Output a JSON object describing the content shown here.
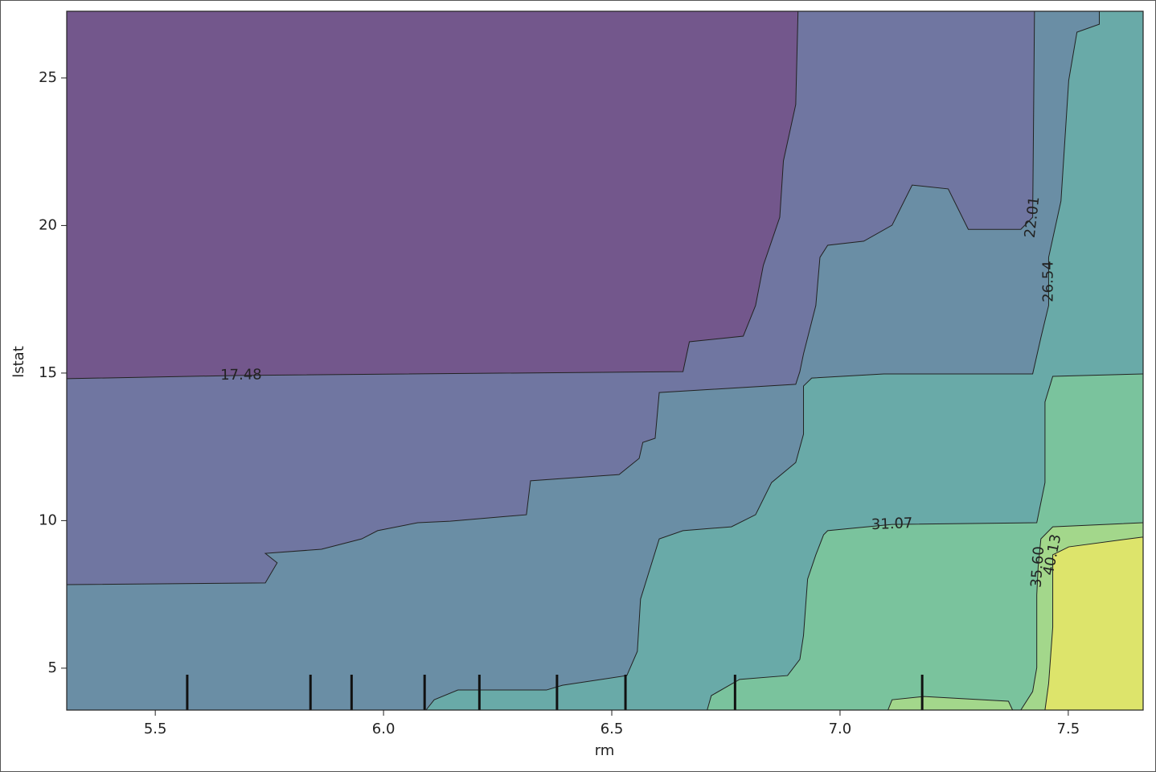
{
  "chart_data": {
    "type": "contour",
    "xlabel": "rm",
    "ylabel": "lstat",
    "xlim": [
      5.306,
      7.664
    ],
    "ylim": [
      3.58,
      27.26
    ],
    "xticks": [
      5.5,
      {
        "value": 6,
        "label": "6.0"
      },
      6.5,
      {
        "value": 7,
        "label": "7.0"
      },
      7.5
    ],
    "yticks": [
      5,
      10,
      15,
      20,
      25
    ],
    "levels": [
      17.48,
      22.01,
      26.54,
      31.07,
      {
        "value": 35.6,
        "label": "35.60"
      },
      40.13
    ],
    "colors": [
      "#73578c",
      "#7076a1",
      "#6a8ea5",
      "#69aaa8",
      "#7ac39d",
      "#a3d78b",
      "#dde46b"
    ],
    "lines": [
      {
        "level": 0,
        "x": [
          5.306,
          5.688,
          6.656,
          6.67,
          6.788,
          6.815,
          6.832,
          6.868,
          6.876,
          6.903,
          6.908
        ],
        "y": [
          14.81,
          14.92,
          15.05,
          16.06,
          16.25,
          17.29,
          18.65,
          20.28,
          22.19,
          24.1,
          27.26
        ]
      },
      {
        "level": 1,
        "x": [
          5.306,
          5.741,
          5.767,
          5.741,
          5.864,
          5.952,
          5.987,
          6.075,
          6.146,
          6.313,
          6.322,
          6.516,
          6.56,
          6.568,
          6.595,
          6.604,
          6.903,
          6.912,
          6.92,
          6.947,
          6.956,
          6.973,
          7.052,
          7.114,
          7.158,
          7.237,
          7.281,
          7.396,
          7.422,
          7.424,
          7.426
        ],
        "y": [
          7.83,
          7.89,
          8.57,
          8.89,
          9.03,
          9.38,
          9.66,
          9.93,
          9.98,
          10.2,
          11.35,
          11.56,
          12.11,
          12.65,
          12.79,
          14.34,
          14.62,
          15.05,
          15.65,
          17.29,
          18.92,
          19.33,
          19.47,
          20.01,
          21.37,
          21.24,
          19.87,
          19.87,
          20.28,
          23.69,
          27.26
        ]
      },
      {
        "level": 2,
        "x": [
          6.093,
          6.111,
          6.163,
          6.216,
          6.357,
          6.392,
          6.533,
          6.556,
          6.563,
          6.604,
          6.656,
          6.762,
          6.815,
          6.85,
          6.903,
          6.92,
          6.92,
          6.938,
          7.096,
          7.422,
          7.44,
          7.457,
          7.457,
          7.457,
          7.484,
          7.501,
          7.519,
          7.568,
          7.568
        ],
        "y": [
          3.58,
          3.93,
          4.26,
          4.26,
          4.26,
          4.42,
          4.75,
          5.57,
          7.34,
          9.38,
          9.66,
          9.79,
          10.2,
          11.29,
          11.97,
          12.93,
          14.56,
          14.83,
          14.97,
          14.97,
          16.2,
          17.29,
          18.1,
          18.92,
          20.83,
          24.92,
          26.55,
          26.82,
          27.26
        ]
      },
      {
        "level": 3,
        "x": [
          6.709,
          6.718,
          6.78,
          6.885,
          6.912,
          6.92,
          6.929,
          6.947,
          6.964,
          6.973,
          7.114,
          7.431,
          7.449,
          7.449,
          7.466,
          7.664
        ],
        "y": [
          3.58,
          4.07,
          4.62,
          4.75,
          5.3,
          6.11,
          8.02,
          8.84,
          9.52,
          9.66,
          9.87,
          9.93,
          11.29,
          14.02,
          14.89,
          14.97
        ]
      },
      {
        "level": 4,
        "x": [
          7.105,
          7.114,
          7.184,
          7.369,
          7.378
        ],
        "y": [
          3.58,
          3.93,
          4.04,
          3.88,
          3.58
        ]
      },
      {
        "level": 4,
        "x": [
          7.396,
          7.422,
          7.431,
          7.431,
          7.434,
          7.44,
          7.466,
          7.664
        ],
        "y": [
          3.58,
          4.21,
          5.02,
          7.48,
          8.43,
          9.38,
          9.79,
          9.93
        ]
      },
      {
        "level": 5,
        "x": [
          7.449,
          7.457,
          7.466,
          7.466,
          7.501,
          7.661,
          7.664
        ],
        "y": [
          3.58,
          4.48,
          6.39,
          8.84,
          9.11,
          9.44,
          9.44
        ]
      }
    ],
    "deciles": [
      5.57,
      5.84,
      5.93,
      6.09,
      6.21,
      6.38,
      6.53,
      6.77,
      7.18
    ]
  }
}
